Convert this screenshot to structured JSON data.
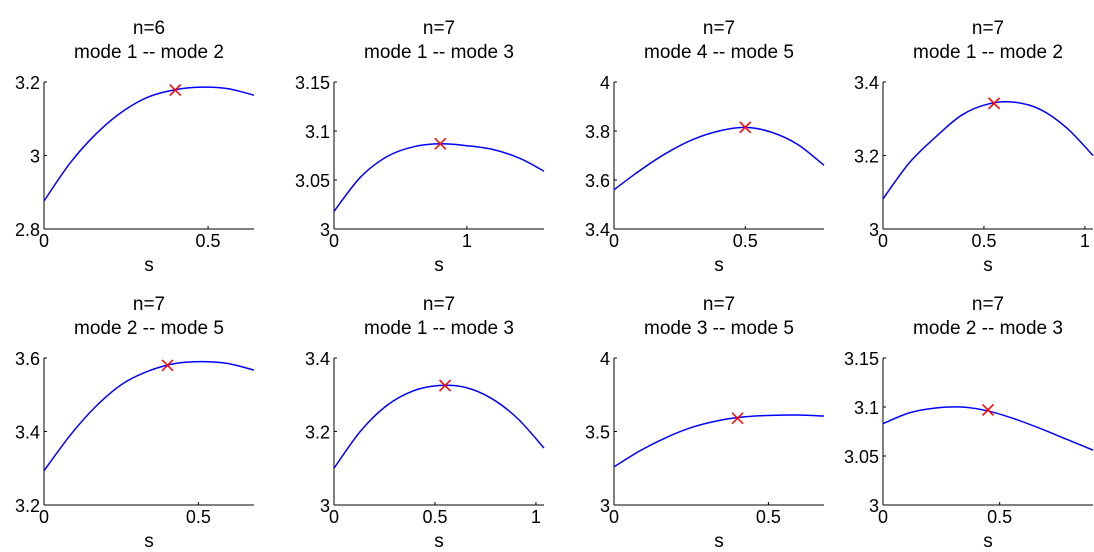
{
  "colors": {
    "curve": "#0000ff",
    "marker": "#ff0000",
    "axis": "#000000",
    "background": "#ffffff"
  },
  "chart_data": [
    {
      "type": "line",
      "title": [
        "n=6",
        "mode 1 -- mode 2"
      ],
      "xlabel": "s",
      "ylabel": "",
      "xlim": [
        0,
        0.64
      ],
      "ylim": [
        2.8,
        3.2
      ],
      "xticks": [
        0,
        0.5
      ],
      "xtick_labels": [
        "0",
        "0.5"
      ],
      "yticks": [
        2.8,
        3.0,
        3.2
      ],
      "ytick_labels": [
        "2.8",
        "3",
        "3.2"
      ],
      "series": [
        {
          "x": [
            0,
            0.08,
            0.16,
            0.24,
            0.32,
            0.4,
            0.48,
            0.56,
            0.64
          ],
          "y": [
            2.876,
            2.98,
            3.06,
            3.12,
            3.16,
            3.179,
            3.186,
            3.182,
            3.164
          ]
        }
      ],
      "marker": {
        "x": 0.4,
        "y": 3.178,
        "symbol": "x"
      }
    },
    {
      "type": "line",
      "title": [
        "n=7",
        "mode 1 -- mode 3"
      ],
      "xlabel": "s",
      "ylabel": "",
      "xlim": [
        0,
        1.58
      ],
      "ylim": [
        3.0,
        3.15
      ],
      "xticks": [
        0,
        1
      ],
      "xtick_labels": [
        "0",
        "1"
      ],
      "yticks": [
        3.0,
        3.05,
        3.1,
        3.15
      ],
      "ytick_labels": [
        "3",
        "3.05",
        "3.1",
        "3.15"
      ],
      "series": [
        {
          "x": [
            0,
            0.2,
            0.4,
            0.6,
            0.8,
            1.0,
            1.2,
            1.4,
            1.58
          ],
          "y": [
            3.018,
            3.053,
            3.074,
            3.084,
            3.087,
            3.085,
            3.081,
            3.072,
            3.059
          ]
        }
      ],
      "marker": {
        "x": 0.8,
        "y": 3.087,
        "symbol": "x"
      }
    },
    {
      "type": "line",
      "title": [
        "n=7",
        "mode 4 -- mode 5"
      ],
      "xlabel": "s",
      "ylabel": "",
      "xlim": [
        0,
        0.8
      ],
      "ylim": [
        3.4,
        4.0
      ],
      "xticks": [
        0,
        0.5
      ],
      "xtick_labels": [
        "0",
        "0.5"
      ],
      "yticks": [
        3.4,
        3.6,
        3.8,
        4.0
      ],
      "ytick_labels": [
        "3.4",
        "3.6",
        "3.8",
        "4"
      ],
      "series": [
        {
          "x": [
            0,
            0.1,
            0.2,
            0.3,
            0.4,
            0.5,
            0.6,
            0.7,
            0.8
          ],
          "y": [
            3.56,
            3.64,
            3.71,
            3.765,
            3.8,
            3.815,
            3.795,
            3.745,
            3.66
          ]
        }
      ],
      "marker": {
        "x": 0.5,
        "y": 3.815,
        "symbol": "x"
      }
    },
    {
      "type": "line",
      "title": [
        "n=7",
        "mode 1 -- mode 2"
      ],
      "xlabel": "s",
      "ylabel": "",
      "xlim": [
        0,
        1.04
      ],
      "ylim": [
        3.0,
        3.4
      ],
      "xticks": [
        0,
        0.5,
        1
      ],
      "xtick_labels": [
        "0",
        "0.5",
        "1"
      ],
      "yticks": [
        3.0,
        3.2,
        3.4
      ],
      "ytick_labels": [
        "3",
        "3.2",
        "3.4"
      ],
      "series": [
        {
          "x": [
            0,
            0.13,
            0.26,
            0.39,
            0.52,
            0.65,
            0.78,
            0.91,
            1.04
          ],
          "y": [
            3.082,
            3.18,
            3.25,
            3.31,
            3.34,
            3.345,
            3.325,
            3.275,
            3.2
          ]
        }
      ],
      "marker": {
        "x": 0.55,
        "y": 3.342,
        "symbol": "x"
      }
    },
    {
      "type": "line",
      "title": [
        "n=7",
        "mode 2 -- mode 5"
      ],
      "xlabel": "s",
      "ylabel": "",
      "xlim": [
        0,
        0.68
      ],
      "ylim": [
        3.2,
        3.6
      ],
      "xticks": [
        0,
        0.5
      ],
      "xtick_labels": [
        "0",
        "0.5"
      ],
      "yticks": [
        3.2,
        3.4,
        3.6
      ],
      "ytick_labels": [
        "3.2",
        "3.4",
        "3.6"
      ],
      "series": [
        {
          "x": [
            0,
            0.085,
            0.17,
            0.255,
            0.34,
            0.425,
            0.51,
            0.595,
            0.68
          ],
          "y": [
            3.293,
            3.39,
            3.47,
            3.53,
            3.565,
            3.585,
            3.59,
            3.585,
            3.567
          ]
        }
      ],
      "marker": {
        "x": 0.4,
        "y": 3.58,
        "symbol": "x"
      }
    },
    {
      "type": "line",
      "title": [
        "n=7",
        "mode 1 -- mode 3"
      ],
      "xlabel": "s",
      "ylabel": "",
      "xlim": [
        0,
        1.04
      ],
      "ylim": [
        3.0,
        3.4
      ],
      "xticks": [
        0,
        0.5,
        1
      ],
      "xtick_labels": [
        "0",
        "0.5",
        "1"
      ],
      "yticks": [
        3.0,
        3.2,
        3.4
      ],
      "ytick_labels": [
        "3",
        "3.2",
        "3.4"
      ],
      "series": [
        {
          "x": [
            0,
            0.13,
            0.26,
            0.39,
            0.52,
            0.65,
            0.78,
            0.91,
            1.04
          ],
          "y": [
            3.1,
            3.2,
            3.27,
            3.31,
            3.325,
            3.32,
            3.29,
            3.235,
            3.155
          ]
        }
      ],
      "marker": {
        "x": 0.55,
        "y": 3.325,
        "symbol": "x"
      }
    },
    {
      "type": "line",
      "title": [
        "n=7",
        "mode 3 -- mode 5"
      ],
      "xlabel": "s",
      "ylabel": "",
      "xlim": [
        0,
        0.68
      ],
      "ylim": [
        3.0,
        4.0
      ],
      "xticks": [
        0,
        0.5
      ],
      "xtick_labels": [
        "0",
        "0.5"
      ],
      "yticks": [
        3.0,
        3.5,
        4.0
      ],
      "ytick_labels": [
        "3",
        "3.5",
        "4"
      ],
      "series": [
        {
          "x": [
            0,
            0.085,
            0.17,
            0.255,
            0.34,
            0.425,
            0.51,
            0.595,
            0.68
          ],
          "y": [
            3.26,
            3.37,
            3.46,
            3.53,
            3.575,
            3.6,
            3.61,
            3.612,
            3.605
          ]
        }
      ],
      "marker": {
        "x": 0.4,
        "y": 3.59,
        "symbol": "x"
      }
    },
    {
      "type": "line",
      "title": [
        "n=7",
        "mode 2 -- mode 3"
      ],
      "xlabel": "s",
      "ylabel": "",
      "xlim": [
        0,
        0.9
      ],
      "ylim": [
        3.0,
        3.15
      ],
      "xticks": [
        0,
        0.5
      ],
      "xtick_labels": [
        "0",
        "0.5"
      ],
      "yticks": [
        3.0,
        3.05,
        3.1,
        3.15
      ],
      "ytick_labels": [
        "3",
        "3.05",
        "3.1",
        "3.15"
      ],
      "series": [
        {
          "x": [
            0,
            0.1125,
            0.225,
            0.3375,
            0.45,
            0.5625,
            0.675,
            0.7875,
            0.9
          ],
          "y": [
            3.083,
            3.094,
            3.099,
            3.1,
            3.096,
            3.088,
            3.078,
            3.067,
            3.056
          ]
        }
      ],
      "marker": {
        "x": 0.45,
        "y": 3.097,
        "symbol": "x"
      }
    }
  ]
}
